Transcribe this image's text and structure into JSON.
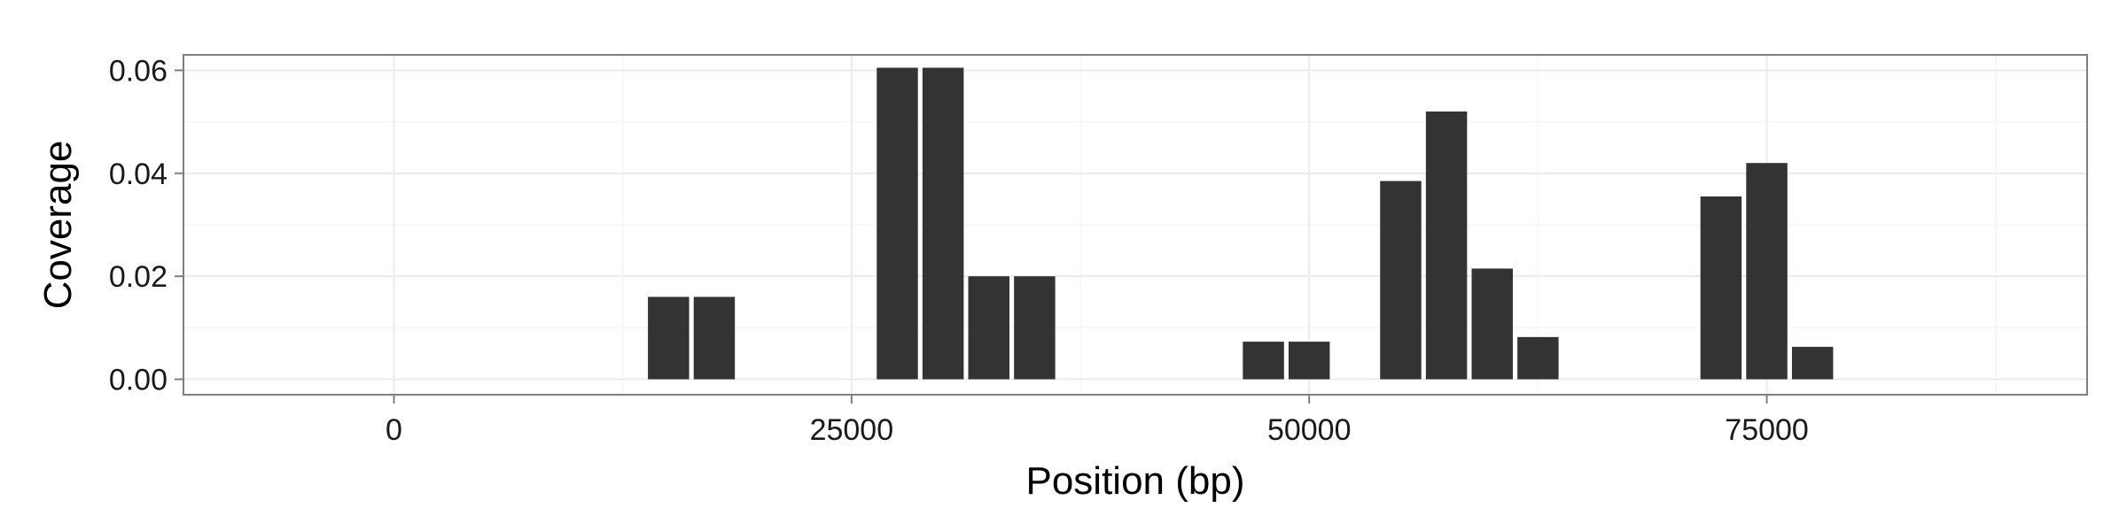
{
  "chart_data": {
    "type": "bar",
    "title": "",
    "xlabel": "Position (bp)",
    "ylabel": "Coverage",
    "xlim": [
      -11500,
      92500
    ],
    "ylim": [
      -0.003,
      0.063
    ],
    "x_ticks": [
      0,
      25000,
      50000,
      75000
    ],
    "x_tick_labels": [
      "0",
      "25000",
      "50000",
      "75000"
    ],
    "y_ticks": [
      0,
      0.02,
      0.04,
      0.06
    ],
    "y_tick_labels": [
      "0.00",
      "0.02",
      "0.04",
      "0.06"
    ],
    "grid": true,
    "bar_width": 2250,
    "bar_color": "#333333",
    "panel_background": "#ffffff",
    "grid_color": "#ebebeb",
    "panel_border_color": "#7f7f7f",
    "x": [
      15000,
      17500,
      27500,
      30000,
      32500,
      35000,
      47500,
      50000,
      55000,
      57500,
      60000,
      62500,
      72500,
      75000,
      77500
    ],
    "values": [
      0.016,
      0.016,
      0.0605,
      0.0605,
      0.02,
      0.02,
      0.0073,
      0.0073,
      0.0385,
      0.052,
      0.0215,
      0.0082,
      0.0355,
      0.042,
      0.0063
    ]
  }
}
